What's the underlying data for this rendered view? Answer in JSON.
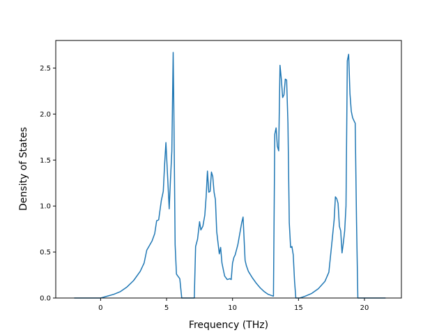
{
  "chart_data": {
    "type": "line",
    "title": "",
    "xlabel": "Frequency (THz)",
    "ylabel": "Density of States",
    "xlim": [
      -3.4,
      22.8
    ],
    "ylim": [
      0.0,
      2.8
    ],
    "xticks": [
      0,
      5,
      10,
      15,
      20
    ],
    "yticks": [
      0.0,
      0.5,
      1.0,
      1.5,
      2.0,
      2.5
    ],
    "xtick_labels": [
      "0",
      "5",
      "10",
      "15",
      "20"
    ],
    "ytick_labels": [
      "0.0",
      "0.5",
      "1.0",
      "1.5",
      "2.0",
      "2.5"
    ],
    "grid": false,
    "legend": false,
    "series": [
      {
        "color": "#1f77b4",
        "x": [
          -2.0,
          -1.0,
          0.0,
          0.5,
          1.0,
          1.5,
          2.0,
          2.5,
          3.0,
          3.3,
          3.5,
          3.7,
          3.9,
          4.1,
          4.25,
          4.4,
          4.6,
          4.75,
          4.85,
          4.95,
          5.05,
          5.2,
          5.3,
          5.4,
          5.5,
          5.55,
          5.65,
          5.75,
          5.85,
          6.0,
          6.15,
          6.3,
          6.4,
          6.6,
          7.1,
          7.2,
          7.35,
          7.5,
          7.6,
          7.75,
          7.9,
          8.0,
          8.1,
          8.2,
          8.3,
          8.4,
          8.5,
          8.6,
          8.7,
          8.8,
          9.0,
          9.1,
          9.2,
          9.3,
          9.4,
          9.6,
          9.8,
          9.9,
          10.0,
          10.1,
          10.2,
          10.4,
          10.6,
          10.7,
          10.8,
          10.95,
          11.05,
          11.2,
          11.5,
          11.8,
          12.1,
          12.4,
          12.7,
          13.1,
          13.2,
          13.3,
          13.4,
          13.5,
          13.6,
          13.7,
          13.8,
          13.9,
          14.0,
          14.1,
          14.2,
          14.3,
          14.4,
          14.5,
          14.6,
          14.7,
          14.8,
          14.9,
          15.0,
          15.1,
          15.5,
          16.0,
          16.5,
          17.0,
          17.3,
          17.5,
          17.7,
          17.8,
          17.9,
          18.0,
          18.1,
          18.2,
          18.3,
          18.4,
          18.5,
          18.6,
          18.7,
          18.8,
          18.9,
          19.0,
          19.1,
          19.2,
          19.3,
          19.4,
          19.5,
          19.7,
          20.5,
          21.6
        ],
        "y": [
          0.0,
          0.0,
          0.0,
          0.02,
          0.04,
          0.07,
          0.12,
          0.19,
          0.29,
          0.38,
          0.52,
          0.57,
          0.62,
          0.7,
          0.84,
          0.85,
          1.06,
          1.16,
          1.45,
          1.69,
          1.4,
          0.97,
          1.3,
          1.6,
          2.67,
          2.1,
          0.58,
          0.26,
          0.24,
          0.21,
          0.0,
          0.0,
          0.0,
          0.0,
          0.0,
          0.56,
          0.64,
          0.83,
          0.74,
          0.78,
          0.9,
          1.1,
          1.38,
          1.15,
          1.16,
          1.37,
          1.32,
          1.15,
          1.07,
          0.72,
          0.48,
          0.55,
          0.38,
          0.31,
          0.24,
          0.2,
          0.21,
          0.2,
          0.38,
          0.44,
          0.47,
          0.58,
          0.74,
          0.82,
          0.88,
          0.41,
          0.35,
          0.29,
          0.22,
          0.16,
          0.11,
          0.07,
          0.04,
          0.02,
          1.78,
          1.85,
          1.65,
          1.6,
          2.53,
          2.38,
          2.18,
          2.21,
          2.38,
          2.37,
          1.9,
          0.82,
          0.55,
          0.56,
          0.47,
          0.18,
          0.0,
          0.0,
          0.0,
          0.0,
          0.02,
          0.05,
          0.1,
          0.18,
          0.28,
          0.56,
          0.85,
          1.1,
          1.08,
          1.03,
          0.78,
          0.73,
          0.49,
          0.6,
          0.73,
          1.0,
          2.58,
          2.65,
          2.22,
          2.03,
          1.96,
          1.93,
          1.9,
          0.83,
          0.0,
          0.0,
          0.0,
          0.0
        ]
      }
    ]
  }
}
